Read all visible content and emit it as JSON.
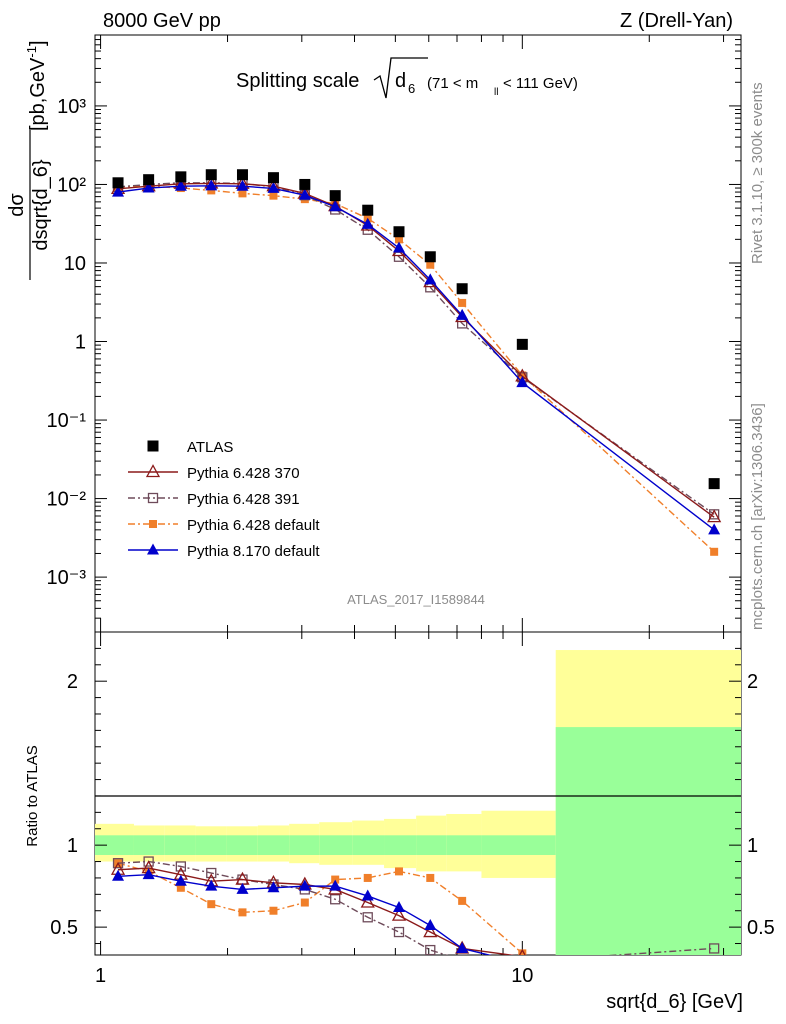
{
  "header": {
    "left": "8000 GeV pp",
    "right": "Z (Drell-Yan)"
  },
  "main_title": {
    "text": "Splitting scale",
    "observable": "d",
    "observable_sub": "6",
    "cut_pre": "(71 < m",
    "cut_sub": "ll",
    "cut_post": " < 111 GeV)"
  },
  "side_labels": {
    "rivet": "Rivet 3.1.10, ≥ 300k events",
    "mcplots": "mcplots.cern.ch [arXiv:1306.3436]"
  },
  "analysis_id": "ATLAS_2017_I1589844",
  "colors": {
    "ATLAS": "#000000",
    "Pythia 6.428 370": "#8b1a1a",
    "Pythia 6.428 391": "#6e4b5a",
    "Pythia 6.428 default": "#f07f2a",
    "Pythia 8.170 default": "#0000cc",
    "band_inner": "#99ff99",
    "band_outer": "#ffff99"
  },
  "chart_data": [
    {
      "type": "scatter",
      "panel": "main",
      "ylabel_num": "dσ",
      "ylabel_den": "dsqrt{d_6}",
      "ylabel_unit": "[pb,GeV",
      "ylabel_unit_sup": "-1",
      "ylabel_unit_end": "]",
      "xscale": "log",
      "yscale": "log",
      "xlim": [
        0.97,
        33
      ],
      "ylim": [
        0.0002,
        8000
      ],
      "yticklabels": [
        "10⁻³",
        "10⁻²",
        "10⁻¹",
        "1",
        "10",
        "10²",
        "10³"
      ],
      "ytickvalues": [
        0.001,
        0.01,
        0.1,
        1,
        10,
        100,
        1000
      ],
      "x": [
        1.1,
        1.3,
        1.55,
        1.83,
        2.17,
        2.57,
        3.05,
        3.6,
        4.3,
        5.1,
        6.05,
        7.2,
        10,
        28.5
      ],
      "series": [
        {
          "name": "ATLAS",
          "marker": "square-filled",
          "values": [
            105,
            115,
            125,
            133,
            133,
            122,
            100,
            72,
            47,
            25,
            12,
            4.7,
            0.92,
            0.0155
          ]
        },
        {
          "name": "Pythia 6.428 370",
          "marker": "triangle-open",
          "line": "solid",
          "values": [
            88,
            95,
            102,
            103,
            102,
            95,
            77,
            53,
            30,
            14.2,
            5.7,
            2.05,
            0.36,
            0.0058
          ]
        },
        {
          "name": "Pythia 6.428 391",
          "marker": "square-open",
          "line": "dashdot",
          "values": [
            93,
            100,
            105,
            105,
            103,
            93,
            73,
            48,
            26.5,
            12,
            4.9,
            1.7,
            0.35,
            0.0063
          ]
        },
        {
          "name": "Pythia 6.428 default",
          "marker": "square-small-filled",
          "line": "dashdot",
          "values": [
            93,
            95,
            90,
            84,
            77,
            72,
            65,
            57,
            37,
            20,
            9.5,
            3.1,
            0.37,
            0.0021
          ]
        },
        {
          "name": "Pythia 8.170 default",
          "marker": "triangle-filled",
          "line": "solid",
          "values": [
            80,
            90,
            95,
            96,
            95,
            89,
            73,
            52,
            31,
            15.5,
            6.1,
            2.15,
            0.3,
            0.004
          ]
        }
      ]
    },
    {
      "type": "line",
      "panel": "ratio",
      "ylabel": "Ratio to ATLAS",
      "xlabel": "sqrt{d_6} [GeV]",
      "xscale": "log",
      "xlim": [
        0.97,
        33
      ],
      "ylim": [
        0.33,
        2.3
      ],
      "yticklabels": [
        "0.5",
        "1",
        "2"
      ],
      "ytickvalues": [
        0.5,
        1,
        2
      ],
      "xticklabels": [
        "1",
        "10"
      ],
      "xtickvalues": [
        1,
        10
      ],
      "band_edges": [
        0.97,
        1.2,
        1.42,
        1.68,
        1.99,
        2.36,
        2.8,
        3.3,
        3.95,
        4.7,
        5.6,
        6.6,
        8,
        12,
        33
      ],
      "band_inner": [
        [
          0.94,
          1.06
        ],
        [
          0.94,
          1.06
        ],
        [
          0.94,
          1.06
        ],
        [
          0.94,
          1.06
        ],
        [
          0.94,
          1.06
        ],
        [
          0.94,
          1.06
        ],
        [
          0.94,
          1.06
        ],
        [
          0.94,
          1.06
        ],
        [
          0.94,
          1.06
        ],
        [
          0.94,
          1.06
        ],
        [
          0.94,
          1.06
        ],
        [
          0.94,
          1.06
        ],
        [
          0.94,
          1.06
        ],
        [
          0.33,
          1.72
        ]
      ],
      "band_outer": [
        [
          0.9,
          1.13
        ],
        [
          0.9,
          1.12
        ],
        [
          0.9,
          1.12
        ],
        [
          0.9,
          1.115
        ],
        [
          0.9,
          1.115
        ],
        [
          0.9,
          1.12
        ],
        [
          0.89,
          1.13
        ],
        [
          0.88,
          1.14
        ],
        [
          0.88,
          1.15
        ],
        [
          0.86,
          1.16
        ],
        [
          0.84,
          1.18
        ],
        [
          0.84,
          1.19
        ],
        [
          0.8,
          1.21
        ],
        [
          0.33,
          2.19
        ]
      ],
      "x": [
        1.1,
        1.3,
        1.55,
        1.83,
        2.17,
        2.57,
        3.05,
        3.6,
        4.3,
        5.1,
        6.05,
        7.2,
        10,
        28.5
      ],
      "series": [
        {
          "name": "Pythia 6.428 370",
          "values": [
            0.85,
            0.86,
            0.82,
            0.78,
            0.79,
            0.77,
            0.76,
            0.73,
            0.65,
            0.57,
            0.47,
            0.37,
            0.32,
            null
          ]
        },
        {
          "name": "Pythia 6.428 391",
          "values": [
            0.89,
            0.9,
            0.87,
            0.83,
            0.79,
            0.76,
            0.73,
            0.67,
            0.56,
            0.47,
            0.36,
            0.3,
            0.29,
            0.37
          ]
        },
        {
          "name": "Pythia 6.428 default",
          "values": [
            0.89,
            0.84,
            0.74,
            0.64,
            0.59,
            0.6,
            0.65,
            0.79,
            0.8,
            0.84,
            0.8,
            0.66,
            0.34,
            null
          ]
        },
        {
          "name": "Pythia 8.170 default",
          "values": [
            0.81,
            0.82,
            0.78,
            0.75,
            0.73,
            0.74,
            0.75,
            0.75,
            0.69,
            0.62,
            0.51,
            0.37,
            0.28,
            null
          ]
        }
      ]
    }
  ]
}
